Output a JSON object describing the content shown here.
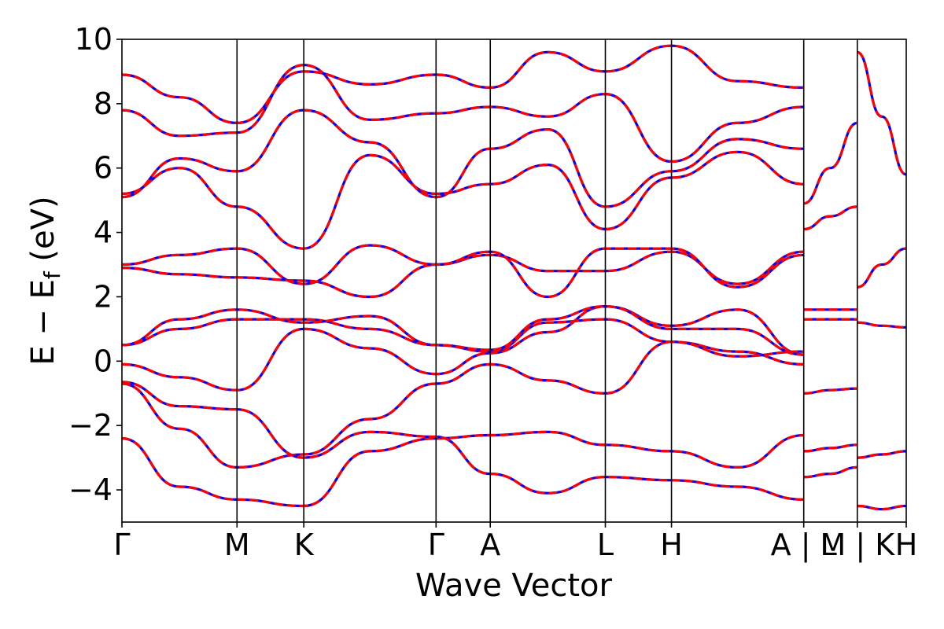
{
  "chart_data": {
    "type": "line",
    "title": "",
    "xlabel": "Wave Vector",
    "ylabel": "E − E",
    "ylabel_subscript": "f",
    "ylabel_unit": " (eV)",
    "ylim": [
      -5,
      10
    ],
    "yticks": [
      -4,
      -2,
      0,
      2,
      4,
      6,
      8,
      10
    ],
    "ytick_labels": [
      "−4",
      "−2",
      "0",
      "2",
      "4",
      "6",
      "8",
      "10"
    ],
    "xlim": [
      0,
      11.86
    ],
    "high_symmetry_points": [
      {
        "label": "Γ",
        "x": 0.0
      },
      {
        "label": "M",
        "x": 1.74
      },
      {
        "label": "K",
        "x": 2.75
      },
      {
        "label": "Γ",
        "x": 4.75
      },
      {
        "label": "A",
        "x": 5.57
      },
      {
        "label": "L",
        "x": 7.31
      },
      {
        "label": "H",
        "x": 8.31
      },
      {
        "label": "A | L",
        "x": 10.31
      },
      {
        "label": "M | K",
        "x": 11.12
      },
      {
        "label": "H",
        "x": 11.86
      }
    ],
    "grid": false,
    "legend": "none",
    "series_styles": [
      {
        "color": "#0000ff",
        "style": "solid"
      },
      {
        "color": "#ff0000",
        "style": "dashed"
      }
    ],
    "bands": [
      {
        "x": [
          0,
          0.87,
          1.74,
          2.75,
          3.75,
          4.75,
          5.57,
          6.44,
          7.31,
          8.31,
          9.31,
          10.31
        ],
        "y": [
          -0.7,
          -2.1,
          -3.3,
          -2.9,
          -1.8,
          -0.7,
          -0.1,
          -0.6,
          -1.0,
          0.6,
          0.3,
          -0.1
        ]
      },
      {
        "x": [
          0,
          0.87,
          1.74,
          2.75,
          3.75,
          4.75,
          5.57,
          6.44,
          7.31,
          8.31,
          9.31,
          10.31
        ],
        "y": [
          -0.1,
          -0.5,
          -0.9,
          1.0,
          0.4,
          -0.4,
          0.25,
          0.9,
          1.7,
          1.1,
          1.6,
          0.2
        ]
      },
      {
        "x": [
          0,
          0.87,
          1.74,
          2.75,
          3.75,
          4.75,
          5.57,
          6.44,
          7.31,
          8.31,
          9.31,
          10.31
        ],
        "y": [
          0.5,
          1.0,
          1.3,
          1.3,
          1.0,
          0.5,
          0.3,
          1.2,
          1.3,
          0.6,
          0.15,
          0.3
        ]
      },
      {
        "x": [
          0,
          0.87,
          1.74,
          2.75,
          3.75,
          4.75,
          5.57,
          6.44,
          7.31,
          8.31,
          9.31,
          10.31
        ],
        "y": [
          0.5,
          1.3,
          1.6,
          1.2,
          1.4,
          0.5,
          0.35,
          1.3,
          1.7,
          1.0,
          1.0,
          0.2
        ]
      },
      {
        "x": [
          0,
          0.87,
          1.74,
          2.75,
          3.75,
          4.75,
          5.57,
          6.44,
          7.31,
          8.31,
          9.31,
          10.31
        ],
        "y": [
          2.9,
          2.7,
          2.6,
          2.5,
          2.0,
          3.0,
          3.3,
          2.8,
          2.8,
          3.4,
          2.4,
          3.4
        ]
      },
      {
        "x": [
          0,
          0.87,
          1.74,
          2.75,
          3.75,
          4.75,
          5.57,
          6.44,
          7.31,
          8.31,
          9.31,
          10.31
        ],
        "y": [
          3.0,
          3.3,
          3.5,
          2.4,
          3.6,
          3.0,
          3.4,
          2.0,
          3.5,
          3.5,
          2.3,
          3.3
        ]
      },
      {
        "x": [
          0,
          0.87,
          1.74,
          2.75,
          3.75,
          4.75,
          5.57,
          6.44,
          7.31,
          8.31,
          9.31,
          10.31
        ],
        "y": [
          5.2,
          6.0,
          4.8,
          3.5,
          6.4,
          5.2,
          5.5,
          6.1,
          4.1,
          5.7,
          6.5,
          5.5
        ]
      },
      {
        "x": [
          0,
          0.87,
          1.74,
          2.75,
          3.75,
          4.75,
          5.57,
          6.44,
          7.31,
          8.31,
          9.31,
          10.31
        ],
        "y": [
          5.1,
          6.3,
          5.9,
          7.8,
          6.8,
          5.1,
          6.6,
          7.2,
          4.8,
          5.9,
          6.9,
          6.6
        ]
      },
      {
        "x": [
          0,
          0.87,
          1.74,
          2.75,
          3.75,
          4.75,
          5.57,
          6.44,
          7.31,
          8.31,
          9.31,
          10.31
        ],
        "y": [
          7.8,
          7.0,
          7.1,
          9.2,
          7.5,
          7.7,
          7.9,
          7.6,
          8.3,
          6.2,
          7.4,
          7.9
        ]
      },
      {
        "x": [
          0,
          0.87,
          1.74,
          2.75,
          3.75,
          4.75,
          5.57,
          6.44,
          7.31,
          8.31,
          9.31,
          10.31
        ],
        "y": [
          8.9,
          8.2,
          7.4,
          9.0,
          8.6,
          8.9,
          8.5,
          9.6,
          9.0,
          9.8,
          8.7,
          8.5
        ]
      },
      {
        "x": [
          0,
          0.87,
          1.74,
          2.75,
          3.75,
          4.75,
          5.57,
          6.44,
          7.31,
          8.31,
          9.31,
          10.31
        ],
        "y": [
          -2.4,
          -3.9,
          -4.3,
          -4.5,
          -2.8,
          -2.4,
          -2.3,
          -2.2,
          -2.6,
          -2.8,
          -3.3,
          -2.3
        ]
      },
      {
        "x": [
          0,
          0.87,
          1.74,
          2.75,
          3.75,
          4.75,
          5.57,
          6.44,
          7.31,
          8.31,
          9.31,
          10.31
        ],
        "y": [
          -0.65,
          -1.4,
          -1.5,
          -3.0,
          -2.2,
          -2.35,
          -3.5,
          -4.1,
          -3.6,
          -3.7,
          -3.9,
          -4.3
        ]
      },
      {
        "x": [
          10.31,
          10.71,
          11.12
        ],
        "y": [
          4.9,
          6.0,
          7.4
        ]
      },
      {
        "x": [
          10.31,
          10.71,
          11.12
        ],
        "y": [
          4.1,
          4.5,
          4.8
        ]
      },
      {
        "x": [
          10.31,
          10.71,
          11.12
        ],
        "y": [
          1.6,
          1.6,
          1.6
        ]
      },
      {
        "x": [
          10.31,
          10.71,
          11.12
        ],
        "y": [
          1.3,
          1.3,
          1.3
        ]
      },
      {
        "x": [
          10.31,
          10.71,
          11.12
        ],
        "y": [
          -1.0,
          -0.9,
          -0.85
        ]
      },
      {
        "x": [
          10.31,
          10.71,
          11.12
        ],
        "y": [
          -2.8,
          -2.7,
          -2.6
        ]
      },
      {
        "x": [
          10.31,
          10.71,
          11.12
        ],
        "y": [
          -3.6,
          -3.5,
          -3.3
        ]
      },
      {
        "x": [
          11.12,
          11.49,
          11.86
        ],
        "y": [
          9.6,
          7.6,
          5.8
        ]
      },
      {
        "x": [
          11.12,
          11.49,
          11.86
        ],
        "y": [
          2.3,
          3.0,
          3.5
        ]
      },
      {
        "x": [
          11.12,
          11.49,
          11.86
        ],
        "y": [
          1.2,
          1.1,
          1.05
        ]
      },
      {
        "x": [
          11.12,
          11.49,
          11.86
        ],
        "y": [
          -3.0,
          -2.9,
          -2.8
        ]
      },
      {
        "x": [
          11.12,
          11.49,
          11.86
        ],
        "y": [
          -4.5,
          -4.6,
          -4.5
        ]
      }
    ]
  }
}
